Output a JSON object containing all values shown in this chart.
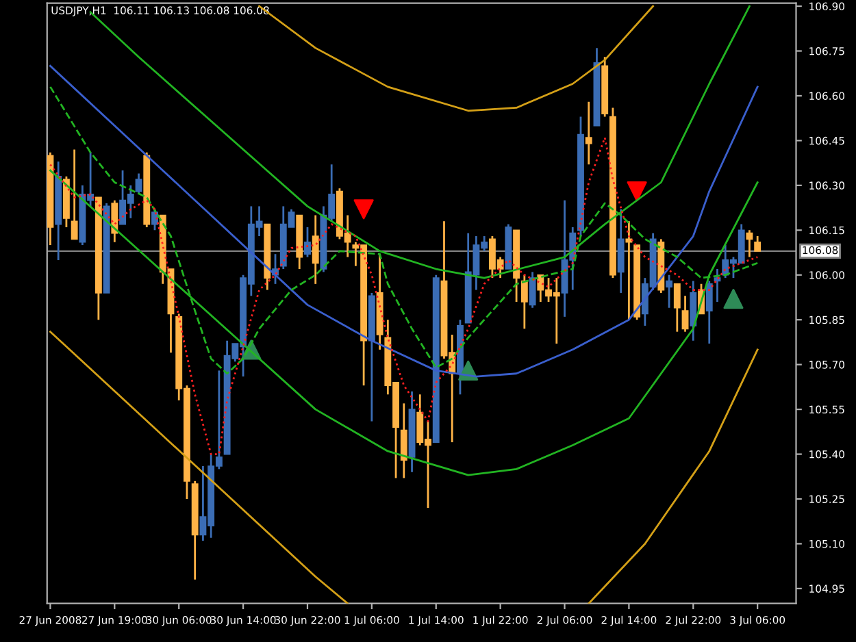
{
  "chart_data": {
    "type": "candlestick",
    "title": "USDJPY,H1  106.11 106.13 106.08 106.08",
    "categories": [
      "27 Jun 2008",
      null,
      null,
      null,
      null,
      null,
      null,
      null,
      "27 Jun 19:00",
      null,
      null,
      null,
      null,
      null,
      null,
      null,
      "30 Jun 06:00",
      null,
      null,
      null,
      null,
      null,
      null,
      null,
      "30 Jun 14:00",
      null,
      null,
      null,
      null,
      null,
      null,
      null,
      "30 Jun 22:00",
      null,
      null,
      null,
      null,
      null,
      null,
      null,
      "1 Jul 06:00",
      null,
      null,
      null,
      null,
      null,
      null,
      null,
      "1 Jul 14:00",
      null,
      null,
      null,
      null,
      null,
      null,
      null,
      "1 Jul 22:00",
      null,
      null,
      null,
      null,
      null,
      null,
      null,
      "2 Jul 06:00",
      null,
      null,
      null,
      null,
      null,
      null,
      null,
      "2 Jul 14:00",
      null,
      null,
      null,
      null,
      null,
      null,
      null,
      "2 Jul 22:00",
      null,
      null,
      null,
      null,
      null,
      null,
      null,
      "3 Jul 06:00"
    ],
    "ohlc": [
      [
        106.4,
        106.41,
        106.1,
        106.16
      ],
      [
        106.17,
        106.38,
        106.05,
        106.33
      ],
      [
        106.32,
        106.33,
        106.16,
        106.19
      ],
      [
        106.18,
        106.42,
        106.12,
        106.12
      ],
      [
        106.11,
        106.3,
        106.1,
        106.27
      ],
      [
        106.25,
        106.41,
        106.23,
        106.27
      ],
      [
        106.26,
        106.26,
        105.85,
        105.94
      ],
      [
        105.94,
        106.24,
        105.94,
        106.23
      ],
      [
        106.24,
        106.25,
        106.11,
        106.14
      ],
      [
        106.17,
        106.35,
        106.17,
        106.25
      ],
      [
        106.24,
        106.3,
        106.19,
        106.27
      ],
      [
        106.28,
        106.34,
        106.27,
        106.32
      ],
      [
        106.4,
        106.41,
        106.16,
        106.17
      ],
      [
        106.17,
        106.22,
        106.15,
        106.21
      ],
      [
        106.2,
        106.2,
        105.97,
        106.01
      ],
      [
        106.02,
        106.02,
        105.74,
        105.87
      ],
      [
        105.86,
        105.87,
        105.58,
        105.62
      ],
      [
        105.62,
        105.63,
        105.25,
        105.31
      ],
      [
        105.3,
        105.31,
        104.98,
        105.13
      ],
      [
        105.13,
        105.36,
        105.11,
        105.19
      ],
      [
        105.16,
        105.4,
        105.12,
        105.36
      ],
      [
        105.36,
        105.68,
        105.35,
        105.39
      ],
      [
        105.4,
        105.78,
        105.4,
        105.73
      ],
      [
        105.72,
        105.77,
        105.71,
        105.77
      ],
      [
        105.76,
        106.0,
        105.66,
        105.99
      ],
      [
        105.97,
        106.23,
        105.93,
        106.17
      ],
      [
        106.16,
        106.23,
        106.13,
        106.18
      ],
      [
        106.17,
        106.17,
        105.95,
        105.99
      ],
      [
        106.0,
        106.07,
        105.97,
        106.02
      ],
      [
        106.03,
        106.23,
        106.02,
        106.17
      ],
      [
        106.16,
        106.22,
        106.16,
        106.21
      ],
      [
        106.2,
        106.2,
        106.02,
        106.06
      ],
      [
        106.07,
        106.16,
        106.06,
        106.11
      ],
      [
        106.13,
        106.2,
        105.97,
        106.04
      ],
      [
        106.02,
        106.23,
        106.01,
        106.2
      ],
      [
        106.19,
        106.37,
        106.18,
        106.27
      ],
      [
        106.28,
        106.29,
        106.12,
        106.13
      ],
      [
        106.14,
        106.2,
        106.06,
        106.11
      ],
      [
        106.1,
        106.11,
        106.03,
        106.09
      ],
      [
        106.1,
        106.1,
        105.63,
        105.78
      ],
      [
        105.78,
        105.94,
        105.51,
        105.93
      ],
      [
        105.94,
        106.07,
        105.75,
        105.8
      ],
      [
        105.79,
        105.85,
        105.6,
        105.63
      ],
      [
        105.64,
        105.64,
        105.32,
        105.49
      ],
      [
        105.48,
        105.57,
        105.32,
        105.38
      ],
      [
        105.39,
        105.61,
        105.34,
        105.55
      ],
      [
        105.54,
        105.6,
        105.43,
        105.44
      ],
      [
        105.45,
        105.51,
        105.22,
        105.43
      ],
      [
        105.44,
        106.0,
        105.44,
        105.99
      ],
      [
        105.98,
        106.18,
        105.72,
        105.73
      ],
      [
        105.74,
        105.8,
        105.44,
        105.67
      ],
      [
        105.67,
        105.85,
        105.6,
        105.83
      ],
      [
        105.84,
        106.14,
        105.84,
        106.01
      ],
      [
        106.0,
        106.13,
        105.95,
        106.1
      ],
      [
        106.09,
        106.13,
        106.08,
        106.11
      ],
      [
        106.12,
        106.13,
        105.99,
        106.02
      ],
      [
        106.05,
        106.06,
        105.99,
        106.02
      ],
      [
        106.02,
        106.17,
        106.02,
        106.16
      ],
      [
        106.15,
        106.15,
        105.91,
        105.99
      ],
      [
        105.98,
        106.0,
        105.82,
        105.91
      ],
      [
        105.9,
        106.01,
        105.89,
        105.99
      ],
      [
        106.0,
        106.0,
        105.91,
        105.95
      ],
      [
        105.95,
        105.99,
        105.91,
        105.93
      ],
      [
        105.94,
        105.99,
        105.77,
        105.93
      ],
      [
        105.94,
        106.25,
        105.86,
        106.05
      ],
      [
        106.05,
        106.16,
        105.95,
        106.14
      ],
      [
        106.15,
        106.53,
        106.13,
        106.47
      ],
      [
        106.46,
        106.58,
        106.37,
        106.44
      ],
      [
        106.5,
        106.76,
        106.5,
        106.71
      ],
      [
        106.7,
        106.73,
        106.53,
        106.54
      ],
      [
        106.53,
        106.56,
        105.99,
        106.0
      ],
      [
        106.01,
        106.22,
        105.94,
        106.12
      ],
      [
        106.12,
        106.18,
        105.85,
        106.11
      ],
      [
        106.1,
        106.1,
        105.85,
        105.86
      ],
      [
        105.87,
        105.99,
        105.83,
        105.97
      ],
      [
        105.96,
        106.14,
        105.95,
        106.12
      ],
      [
        106.11,
        106.12,
        105.94,
        105.95
      ],
      [
        105.96,
        106.0,
        105.89,
        105.98
      ],
      [
        105.97,
        105.97,
        105.81,
        105.89
      ],
      [
        105.88,
        105.93,
        105.81,
        105.82
      ],
      [
        105.83,
        105.98,
        105.78,
        105.94
      ],
      [
        105.95,
        105.97,
        105.87,
        105.87
      ],
      [
        105.88,
        105.98,
        105.77,
        105.97
      ],
      [
        105.98,
        106.02,
        105.91,
        105.99
      ],
      [
        106.0,
        106.1,
        105.99,
        106.05
      ],
      [
        106.04,
        106.06,
        105.99,
        106.05
      ],
      [
        106.04,
        106.17,
        106.04,
        106.15
      ],
      [
        106.14,
        106.15,
        106.06,
        106.12
      ],
      [
        106.11,
        106.13,
        106.08,
        106.08
      ]
    ],
    "colors": [
      "#ffb347",
      "#3b6db5",
      "#ffb347",
      "#ffb347",
      "#3b6db5",
      "#3b6db5",
      "#ffb347",
      "#3b6db5",
      "#ffb347",
      "#3b6db5",
      "#3b6db5",
      "#3b6db5",
      "#ffb347",
      "#3b6db5",
      "#ffb347",
      "#ffb347",
      "#ffb347",
      "#ffb347",
      "#ffb347",
      "#3b6db5",
      "#3b6db5",
      "#3b6db5",
      "#3b6db5",
      "#3b6db5",
      "#3b6db5",
      "#3b6db5",
      "#3b6db5",
      "#ffb347",
      "#3b6db5",
      "#3b6db5",
      "#3b6db5",
      "#ffb347",
      "#3b6db5",
      "#ffb347",
      "#3b6db5",
      "#3b6db5",
      "#ffb347",
      "#ffb347",
      "#ffb347",
      "#ffb347",
      "#3b6db5",
      "#ffb347",
      "#ffb347",
      "#ffb347",
      "#ffb347",
      "#3b6db5",
      "#ffb347",
      "#ffb347",
      "#3b6db5",
      "#ffb347",
      "#ffb347",
      "#3b6db5",
      "#3b6db5",
      "#3b6db5",
      "#3b6db5",
      "#ffb347",
      "#ffb347",
      "#3b6db5",
      "#ffb347",
      "#ffb347",
      "#3b6db5",
      "#ffb347",
      "#ffb347",
      "#ffb347",
      "#3b6db5",
      "#3b6db5",
      "#3b6db5",
      "#ffb347",
      "#3b6db5",
      "#ffb347",
      "#ffb347",
      "#3b6db5",
      "#ffb347",
      "#ffb347",
      "#3b6db5",
      "#3b6db5",
      "#ffb347",
      "#3b6db5",
      "#ffb347",
      "#ffb347",
      "#3b6db5",
      "#ffb347",
      "#3b6db5",
      "#3b6db5",
      "#3b6db5",
      "#3b6db5",
      "#3b6db5",
      "#ffb347",
      "#ffb347"
    ],
    "series": [
      {
        "type": "line",
        "color": "#d4a017",
        "line_style": "solid",
        "values": [
          null,
          null,
          null,
          null,
          null,
          null,
          null,
          null,
          null,
          null,
          null,
          null,
          null,
          null,
          null,
          null,
          null,
          null,
          null,
          null,
          null,
          null,
          null,
          null,
          null,
          null,
          106.9,
          null,
          null,
          null,
          null,
          null,
          null,
          106.76,
          null,
          null,
          null,
          null,
          null,
          null,
          null,
          null,
          106.63,
          null,
          null,
          null,
          null,
          null,
          null,
          null,
          null,
          null,
          106.55,
          null,
          null,
          null,
          null,
          null,
          106.56,
          null,
          null,
          null,
          null,
          null,
          null,
          106.64,
          null,
          null,
          null,
          106.72,
          null,
          null,
          null,
          null,
          null,
          106.9,
          null,
          null,
          null,
          null,
          null,
          null,
          null,
          null,
          null,
          null,
          null,
          null,
          null
        ]
      },
      {
        "type": "line",
        "color": "#22b422",
        "line_style": "solid",
        "values": [
          null,
          null,
          null,
          null,
          null,
          106.88,
          null,
          null,
          null,
          null,
          null,
          106.73,
          null,
          null,
          null,
          null,
          null,
          null,
          null,
          null,
          null,
          null,
          null,
          null,
          null,
          null,
          null,
          null,
          null,
          null,
          null,
          null,
          106.23,
          null,
          null,
          null,
          null,
          null,
          null,
          null,
          null,
          106.08,
          null,
          null,
          null,
          null,
          null,
          null,
          106.02,
          null,
          null,
          null,
          null,
          null,
          105.99,
          null,
          null,
          null,
          null,
          null,
          null,
          null,
          null,
          null,
          106.06,
          null,
          null,
          null,
          null,
          106.17,
          null,
          null,
          null,
          null,
          null,
          null,
          106.31,
          null,
          null,
          null,
          null,
          null,
          106.64,
          null,
          null,
          null,
          null,
          106.9,
          null
        ]
      },
      {
        "type": "line",
        "color": "#3a5fcd",
        "line_style": "solid",
        "values": [
          106.7,
          null,
          null,
          null,
          null,
          null,
          null,
          null,
          null,
          null,
          null,
          null,
          null,
          null,
          null,
          null,
          null,
          null,
          null,
          null,
          null,
          null,
          null,
          null,
          null,
          null,
          null,
          null,
          null,
          null,
          null,
          null,
          105.9,
          null,
          null,
          null,
          null,
          null,
          null,
          null,
          105.78,
          null,
          null,
          null,
          null,
          null,
          null,
          null,
          105.68,
          null,
          null,
          null,
          null,
          105.66,
          null,
          null,
          null,
          null,
          105.67,
          null,
          null,
          null,
          null,
          null,
          null,
          105.75,
          null,
          null,
          null,
          null,
          null,
          null,
          105.85,
          null,
          null,
          null,
          null,
          null,
          null,
          null,
          106.13,
          null,
          106.28,
          null,
          null,
          null,
          null,
          null,
          106.63
        ]
      },
      {
        "type": "line",
        "color": "#22b422",
        "line_style": "solid",
        "values": [
          106.35,
          null,
          null,
          null,
          null,
          null,
          null,
          null,
          null,
          null,
          null,
          null,
          null,
          null,
          null,
          null,
          null,
          null,
          null,
          null,
          null,
          null,
          null,
          null,
          null,
          null,
          null,
          null,
          null,
          null,
          null,
          null,
          null,
          105.55,
          null,
          null,
          null,
          null,
          null,
          null,
          null,
          null,
          105.41,
          null,
          null,
          null,
          null,
          null,
          null,
          null,
          null,
          null,
          105.33,
          null,
          null,
          null,
          null,
          null,
          105.35,
          null,
          null,
          null,
          null,
          null,
          null,
          105.43,
          null,
          null,
          null,
          null,
          null,
          null,
          105.52,
          null,
          null,
          null,
          null,
          null,
          null,
          null,
          105.82,
          null,
          106.0,
          null,
          null,
          null,
          null,
          null,
          106.31
        ]
      },
      {
        "type": "line",
        "color": "#d4a017",
        "line_style": "solid",
        "values": [
          105.81,
          null,
          null,
          null,
          null,
          null,
          null,
          null,
          null,
          null,
          null,
          null,
          null,
          null,
          null,
          null,
          null,
          null,
          null,
          null,
          null,
          null,
          null,
          null,
          null,
          null,
          null,
          null,
          null,
          null,
          null,
          null,
          null,
          104.99,
          null,
          null,
          null,
          104.9,
          null,
          null,
          null,
          null,
          null,
          null,
          null,
          null,
          null,
          null,
          null,
          null,
          null,
          null,
          null,
          null,
          null,
          null,
          null,
          null,
          null,
          null,
          null,
          null,
          null,
          null,
          null,
          null,
          null,
          null,
          null,
          null,
          null,
          null,
          null,
          null,
          null,
          null,
          null,
          null,
          null,
          null,
          null,
          null,
          null,
          null,
          null,
          null,
          null,
          null,
          null
        ]
      },
      {
        "type": "line",
        "color": "#d4a017",
        "line_style": "solid",
        "values": [
          null,
          null,
          null,
          null,
          null,
          null,
          null,
          null,
          null,
          null,
          null,
          null,
          null,
          null,
          null,
          null,
          null,
          null,
          null,
          null,
          null,
          null,
          null,
          null,
          null,
          null,
          null,
          null,
          null,
          null,
          null,
          null,
          null,
          null,
          null,
          null,
          null,
          null,
          null,
          null,
          null,
          null,
          null,
          null,
          null,
          null,
          null,
          null,
          null,
          null,
          null,
          null,
          null,
          null,
          null,
          null,
          null,
          null,
          null,
          null,
          null,
          null,
          null,
          null,
          null,
          null,
          null,
          104.9,
          null,
          null,
          null,
          null,
          null,
          null,
          105.1,
          null,
          null,
          null,
          null,
          null,
          null,
          null,
          105.41,
          null,
          null,
          null,
          null,
          null,
          105.75
        ]
      },
      {
        "type": "line",
        "color": "#22b422",
        "line_style": "dashed",
        "values": [
          106.63,
          null,
          null,
          null,
          null,
          106.41,
          null,
          null,
          106.31,
          null,
          null,
          null,
          106.26,
          null,
          null,
          106.13,
          null,
          null,
          105.88,
          null,
          105.72,
          null,
          105.67,
          null,
          105.72,
          null,
          105.82,
          null,
          null,
          null,
          105.95,
          null,
          null,
          106.0,
          null,
          null,
          106.08,
          null,
          null,
          null,
          null,
          106.07,
          105.97,
          null,
          null,
          105.82,
          null,
          null,
          105.69,
          null,
          105.72,
          null,
          105.79,
          null,
          null,
          105.88,
          null,
          null,
          105.97,
          null,
          null,
          null,
          106.0,
          null,
          null,
          106.02,
          106.13,
          null,
          null,
          106.24,
          null,
          106.2,
          null,
          null,
          106.12,
          null,
          null,
          null,
          106.06,
          null,
          null,
          105.99,
          null,
          null,
          106.0,
          null,
          null,
          null,
          106.04
        ]
      },
      {
        "type": "line",
        "color": "#ff2020",
        "line_style": "dotted",
        "values": [
          106.37,
          null,
          null,
          106.26,
          null,
          106.27,
          null,
          null,
          106.17,
          null,
          106.22,
          null,
          106.25,
          106.22,
          106.1,
          null,
          105.86,
          null,
          105.6,
          null,
          105.4,
          105.4,
          105.58,
          null,
          105.76,
          null,
          105.95,
          null,
          106.0,
          null,
          106.09,
          null,
          null,
          106.1,
          null,
          106.17,
          null,
          null,
          106.13,
          null,
          106.0,
          null,
          105.79,
          null,
          105.63,
          null,
          null,
          105.51,
          105.64,
          null,
          105.7,
          null,
          105.82,
          null,
          105.97,
          null,
          null,
          106.05,
          null,
          106.0,
          null,
          null,
          105.96,
          null,
          null,
          106.04,
          null,
          106.31,
          null,
          106.46,
          106.32,
          null,
          106.13,
          null,
          106.06,
          null,
          null,
          null,
          106.0,
          null,
          105.95,
          null,
          105.95,
          null,
          106.02,
          null,
          null,
          null,
          106.06
        ]
      },
      {
        "type": "scatter",
        "color": "#ff0000",
        "marker": "triangle_down",
        "values": [
          null,
          null,
          null,
          null,
          null,
          null,
          null,
          null,
          null,
          null,
          null,
          null,
          null,
          null,
          null,
          null,
          null,
          null,
          null,
          null,
          null,
          null,
          null,
          null,
          null,
          null,
          null,
          null,
          null,
          null,
          null,
          null,
          null,
          null,
          null,
          null,
          null,
          null,
          null,
          106.22,
          null,
          null,
          null,
          null,
          null,
          null,
          null,
          null,
          null,
          null,
          null,
          null,
          null,
          null,
          null,
          null,
          null,
          null,
          null,
          null,
          null,
          null,
          null,
          null,
          null,
          null,
          null,
          null,
          null,
          null,
          null,
          null,
          null,
          106.28,
          null,
          null,
          null,
          null,
          null,
          null,
          null,
          null,
          null,
          null,
          null,
          null,
          null,
          null,
          null
        ]
      },
      {
        "type": "scatter",
        "color": "#2e8b57",
        "marker": "triangle",
        "values": [
          null,
          null,
          null,
          null,
          null,
          null,
          null,
          null,
          null,
          null,
          null,
          null,
          null,
          null,
          null,
          null,
          null,
          null,
          null,
          null,
          null,
          null,
          null,
          null,
          null,
          105.75,
          null,
          null,
          null,
          null,
          null,
          null,
          null,
          null,
          null,
          null,
          null,
          null,
          null,
          null,
          null,
          null,
          null,
          null,
          null,
          null,
          null,
          null,
          null,
          null,
          null,
          null,
          105.68,
          null,
          null,
          null,
          null,
          null,
          null,
          null,
          null,
          null,
          null,
          null,
          null,
          null,
          null,
          null,
          null,
          null,
          null,
          null,
          null,
          null,
          null,
          null,
          null,
          null,
          null,
          null,
          null,
          null,
          null,
          null,
          null,
          105.92,
          null,
          null,
          null
        ]
      }
    ],
    "ylim": [
      104.9,
      106.91
    ],
    "yticks": [
      {
        "value": 104.95,
        "label": "104.95"
      },
      {
        "value": 105.1,
        "label": "105.10"
      },
      {
        "value": 105.25,
        "label": "105.25"
      },
      {
        "value": 105.4,
        "label": "105.40"
      },
      {
        "value": 105.55,
        "label": "105.55"
      },
      {
        "value": 105.7,
        "label": "105.70"
      },
      {
        "value": 105.85,
        "label": "105.85"
      },
      {
        "value": 106.0,
        "label": "106.00"
      },
      {
        "value": 106.15,
        "label": "106.15"
      },
      {
        "value": 106.3,
        "label": "106.30"
      },
      {
        "value": 106.45,
        "label": "106.45"
      },
      {
        "value": 106.6,
        "label": "106.60"
      },
      {
        "value": 106.75,
        "label": "106.75"
      },
      {
        "value": 106.9,
        "label": "106.90"
      }
    ],
    "ref_lines": [
      {
        "axis": "y",
        "value": 106.08,
        "label": "106.08",
        "color": "#808080",
        "line_style": "solid"
      }
    ]
  }
}
